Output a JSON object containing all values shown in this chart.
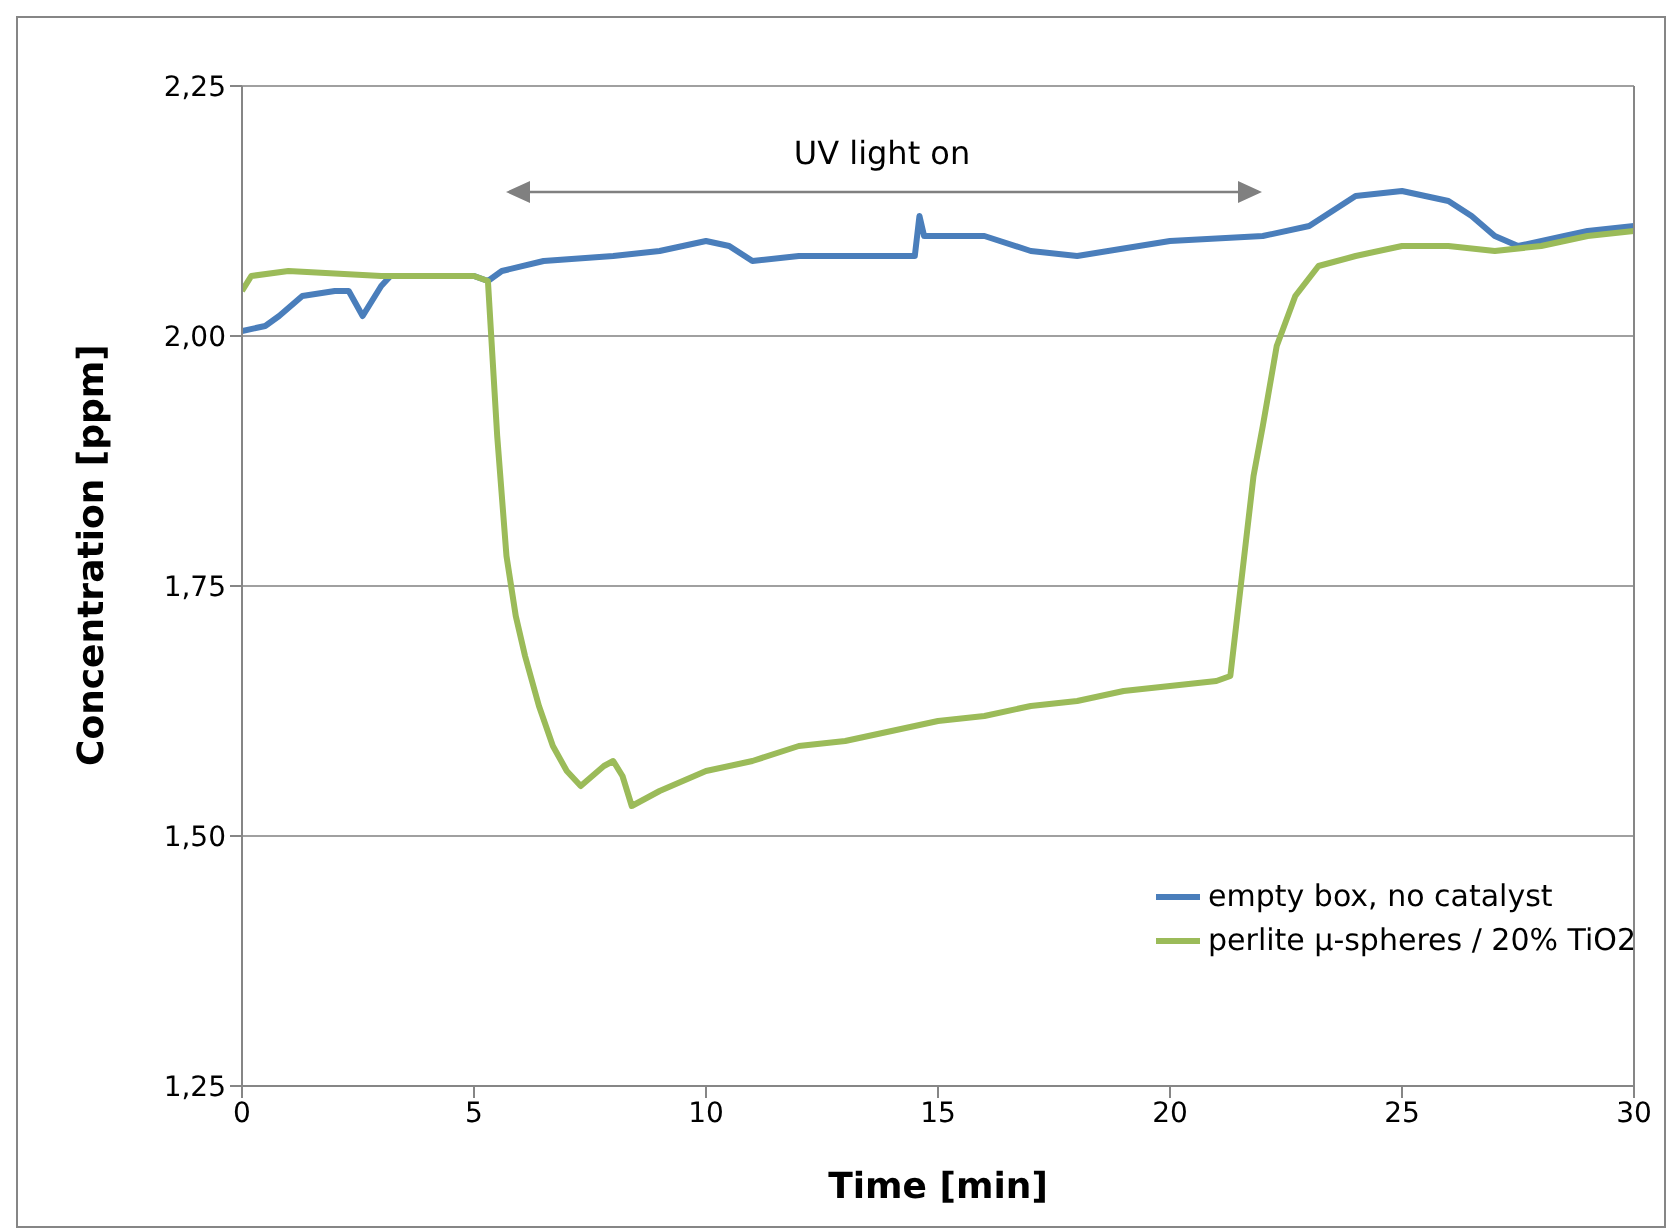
{
  "chart_data": {
    "type": "line",
    "xlabel": "Time [min]",
    "ylabel": "Concentration [ppm]",
    "xlim": [
      0,
      30
    ],
    "xticks": [
      0,
      5,
      10,
      15,
      20,
      25,
      30
    ],
    "ylim": [
      1.25,
      2.25
    ],
    "yticks": [
      {
        "value": 1.25,
        "label": "1,25"
      },
      {
        "value": 1.5,
        "label": "1,50"
      },
      {
        "value": 1.75,
        "label": "1,75"
      },
      {
        "value": 2.0,
        "label": "2,00"
      },
      {
        "value": 2.25,
        "label": "2,25"
      }
    ],
    "grid": "y",
    "legend": "bottom right",
    "marker": "none",
    "line_style": "solid",
    "annotations": [
      "UV light on"
    ],
    "series": [
      {
        "name": "empty box, no catalyst",
        "color": "#4a7ebb",
        "x": [
          0,
          0.5,
          0.8,
          1.3,
          2.0,
          2.3,
          2.6,
          3.0,
          3.2,
          5.0,
          5.3,
          5.6,
          6.5,
          8,
          9,
          10,
          10.5,
          11,
          12,
          14.5,
          14.6,
          14.7,
          16,
          17,
          18,
          20,
          22,
          23,
          24,
          25,
          26,
          26.5,
          27,
          27.5,
          28.5,
          29,
          30
        ],
        "values": [
          2.005,
          2.01,
          2.02,
          2.04,
          2.045,
          2.045,
          2.02,
          2.05,
          2.06,
          2.06,
          2.055,
          2.065,
          2.075,
          2.08,
          2.085,
          2.095,
          2.09,
          2.075,
          2.08,
          2.08,
          2.12,
          2.1,
          2.1,
          2.085,
          2.08,
          2.095,
          2.1,
          2.11,
          2.14,
          2.145,
          2.135,
          2.12,
          2.1,
          2.09,
          2.1,
          2.105,
          2.11
        ]
      },
      {
        "name": "perlite µ-spheres / 20% TiO2",
        "color": "#9bbb59",
        "x": [
          0,
          0.2,
          1,
          3,
          5,
          5.3,
          5.5,
          5.7,
          5.9,
          6.1,
          6.4,
          6.7,
          7,
          7.3,
          7.8,
          8,
          8.2,
          8.4,
          9,
          10,
          11,
          12,
          13,
          14,
          15,
          16,
          17,
          18,
          19,
          20,
          21,
          21.3,
          21.6,
          21.8,
          22,
          22.3,
          22.7,
          23.2,
          24,
          25,
          26,
          27,
          28,
          29,
          30
        ],
        "values": [
          2.045,
          2.06,
          2.065,
          2.06,
          2.06,
          2.055,
          1.9,
          1.78,
          1.72,
          1.68,
          1.63,
          1.59,
          1.565,
          1.55,
          1.57,
          1.575,
          1.56,
          1.53,
          1.545,
          1.565,
          1.575,
          1.59,
          1.595,
          1.605,
          1.615,
          1.62,
          1.63,
          1.635,
          1.645,
          1.65,
          1.655,
          1.66,
          1.78,
          1.86,
          1.91,
          1.99,
          2.04,
          2.07,
          2.08,
          2.09,
          2.09,
          2.085,
          2.09,
          2.1,
          2.105
        ]
      }
    ]
  }
}
